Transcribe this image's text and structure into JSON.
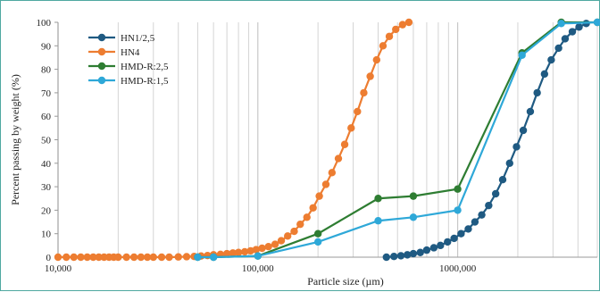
{
  "chart_data": {
    "type": "scatter",
    "title": "",
    "xlabel": "Particle size (µm)",
    "ylabel": "Percent passing by weight (%)",
    "x_scale": "log",
    "xlim": [
      10000,
      5000000
    ],
    "ylim": [
      0,
      100
    ],
    "x_tick_values": [
      10000,
      100000,
      1000000
    ],
    "x_tick_labels": [
      "10,000",
      "100,000",
      "1000,000"
    ],
    "y_ticks": [
      0,
      10,
      20,
      30,
      40,
      50,
      60,
      70,
      80,
      90,
      100
    ],
    "grid": "vertical log gridlines",
    "legend_position": "top-left",
    "series": [
      {
        "name": "HN1/2,5",
        "color": "#1f5a82",
        "x": [
          440000,
          480000,
          520000,
          560000,
          600000,
          650000,
          700000,
          760000,
          820000,
          890000,
          960000,
          1040000,
          1130000,
          1220000,
          1320000,
          1430000,
          1550000,
          1680000,
          1820000,
          1970000,
          2130000,
          2310000,
          2500000,
          2720000,
          2940000,
          3200000,
          3450000,
          3750000,
          4050000,
          4400000
        ],
        "y": [
          0,
          0.3,
          0.6,
          1,
          1.5,
          2,
          3,
          4,
          5,
          6.5,
          8,
          10,
          12,
          15,
          18,
          22,
          27,
          33,
          40,
          47,
          54,
          62,
          70,
          78,
          84,
          89,
          93,
          96,
          98,
          99.5
        ]
      },
      {
        "name": "HN4",
        "color": "#ed7d31",
        "x": [
          10000,
          11000,
          12000,
          13000,
          14000,
          15000,
          16000,
          17000,
          18000,
          19000,
          20000,
          22000,
          24000,
          26000,
          28000,
          30000,
          33000,
          36000,
          40000,
          44000,
          48000,
          52000,
          56000,
          60000,
          65000,
          70000,
          75000,
          80000,
          86000,
          92000,
          98000,
          105000,
          113000,
          122000,
          131000,
          141000,
          152000,
          163000,
          176000,
          189000,
          203000,
          219000,
          235000,
          253000,
          272000,
          293000,
          315000,
          339000,
          365000,
          393000,
          423000,
          455000,
          490000,
          530000,
          570000
        ],
        "y": [
          0,
          0,
          0,
          0,
          0,
          0,
          0,
          0,
          0,
          0,
          0,
          0,
          0,
          0,
          0,
          0,
          0,
          0,
          0.1,
          0.2,
          0.3,
          0.5,
          0.7,
          1,
          1.2,
          1.5,
          1.8,
          2,
          2.3,
          2.7,
          3.2,
          3.8,
          4.5,
          5.5,
          7,
          9,
          11,
          14,
          17,
          21,
          26,
          31,
          36,
          42,
          48,
          55,
          62,
          70,
          77,
          84,
          90,
          94,
          97,
          99,
          100
        ]
      },
      {
        "name": "HMD-R:2,5",
        "color": "#2e7d32",
        "x": [
          50000,
          60000,
          100000,
          200000,
          400000,
          600000,
          1000000,
          2100000,
          3300000,
          6000000
        ],
        "y": [
          0,
          0,
          0.5,
          10,
          25,
          26,
          29,
          87,
          100,
          100
        ]
      },
      {
        "name": "HMD-R:1,5",
        "color": "#2ea8d8",
        "x": [
          50000,
          60000,
          100000,
          200000,
          400000,
          600000,
          1000000,
          2100000,
          3300000,
          6000000
        ],
        "y": [
          0,
          0,
          0.5,
          6.5,
          15.5,
          17,
          20,
          86,
          99.5,
          100
        ]
      }
    ]
  }
}
